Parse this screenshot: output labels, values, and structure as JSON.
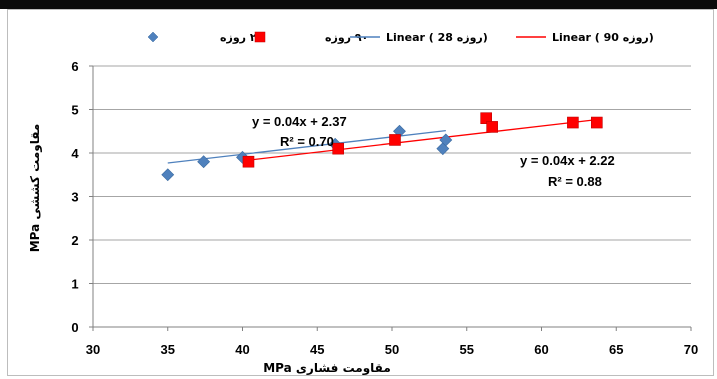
{
  "chart_data": {
    "type": "scatter",
    "xlabel": "مقاومت فشاری MPa",
    "ylabel": "مقاومت کششی MPa",
    "xlim": [
      30,
      70
    ],
    "ylim": [
      0,
      6
    ],
    "xticks": [
      30,
      35,
      40,
      45,
      50,
      55,
      60,
      65,
      70
    ],
    "yticks": [
      0,
      1,
      2,
      3,
      4,
      5,
      6
    ],
    "grid": "horizontal",
    "legend_position": "top",
    "series": [
      {
        "name": "۲۸ روزه",
        "marker": "diamond",
        "color": "#4f81bd",
        "points": [
          [
            35.0,
            3.5
          ],
          [
            37.4,
            3.8
          ],
          [
            40.0,
            3.9
          ],
          [
            46.2,
            4.2
          ],
          [
            50.5,
            4.5
          ],
          [
            53.4,
            4.1
          ],
          [
            53.6,
            4.3
          ]
        ]
      },
      {
        "name": "۹۰ روزه",
        "marker": "square",
        "color": "#ff0000",
        "points": [
          [
            40.4,
            3.8
          ],
          [
            46.4,
            4.1
          ],
          [
            50.2,
            4.3
          ],
          [
            56.3,
            4.8
          ],
          [
            56.7,
            4.6
          ],
          [
            62.1,
            4.7
          ],
          [
            63.7,
            4.7
          ]
        ]
      }
    ],
    "trendlines": [
      {
        "name": "Linear ( 28 روزه)",
        "color": "#4f81bd",
        "slope": 0.04,
        "intercept": 2.37,
        "x_range": [
          35.0,
          53.6
        ],
        "equation": "y = 0.04x + 2.37",
        "r2": "R² = 0.70"
      },
      {
        "name": "Linear ( 90 روزه)",
        "color": "#ff0000",
        "slope": 0.04,
        "intercept": 2.22,
        "x_range": [
          40.4,
          63.7
        ],
        "equation": "y = 0.04x + 2.22",
        "r2": "R² = 0.88"
      }
    ]
  }
}
